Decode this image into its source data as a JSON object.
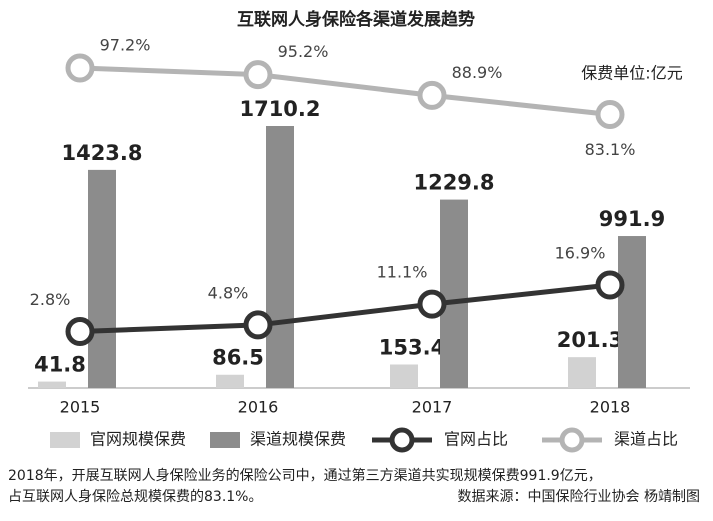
{
  "chart_data": {
    "type": "bar-line",
    "title": "互联网人身保险各渠道发展趋势",
    "unit": "保费单位:亿元",
    "categories": [
      "2015",
      "2016",
      "2017",
      "2018"
    ],
    "series": [
      {
        "name": "官网规模保费",
        "type": "bar",
        "color": "#d2d2d2",
        "values": [
          41.8,
          86.5,
          153.4,
          201.3
        ]
      },
      {
        "name": "渠道规模保费",
        "type": "bar",
        "color": "#8c8c8c",
        "values": [
          1423.8,
          1710.2,
          1229.8,
          991.9
        ]
      },
      {
        "name": "官网占比",
        "type": "line",
        "color": "#333333",
        "values": [
          2.8,
          4.8,
          11.1,
          16.9
        ],
        "value_labels": [
          "2.8%",
          "4.8%",
          "11.1%",
          "16.9%"
        ]
      },
      {
        "name": "渠道占比",
        "type": "line",
        "color": "#b4b4b4",
        "values": [
          97.2,
          95.2,
          88.9,
          83.1
        ],
        "value_labels": [
          "97.2%",
          "95.2%",
          "88.9%",
          "83.1%"
        ]
      }
    ],
    "notes": [
      "2018年，开展互联网人身保险业务的保险公司中，通过第三方渠道共实现规模保费991.9亿元，",
      "占互联网人身保险总规模保费的83.1%。"
    ],
    "source": "数据来源：中国保险行业协会  杨靖制图"
  }
}
